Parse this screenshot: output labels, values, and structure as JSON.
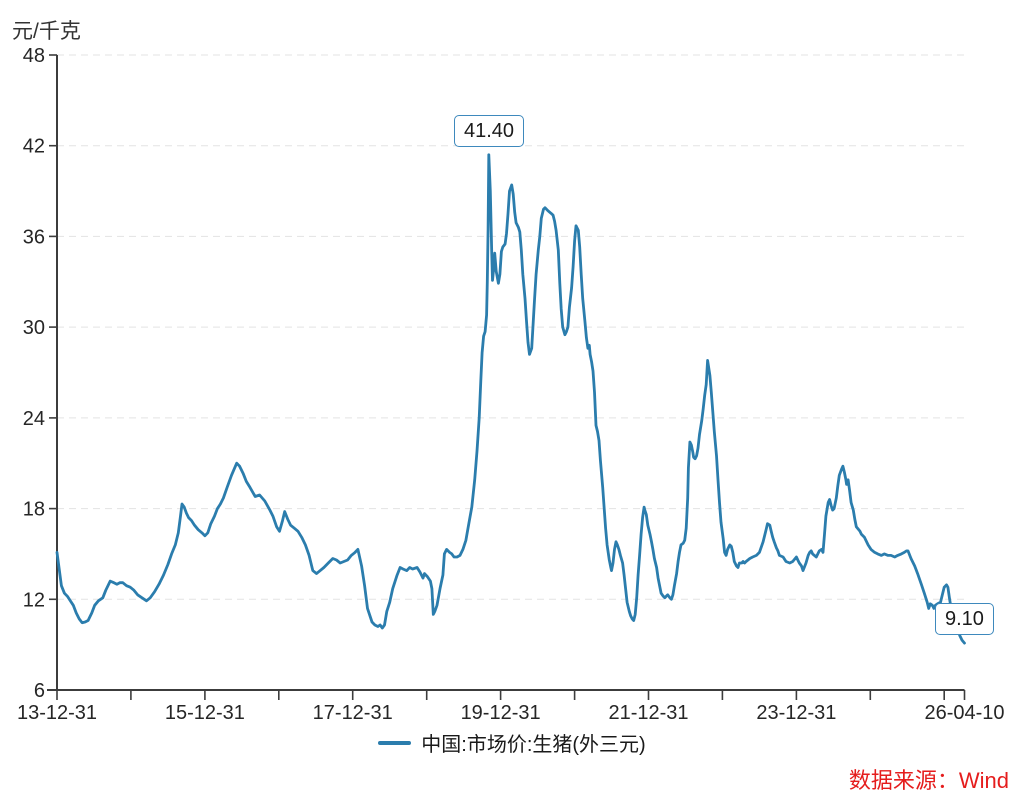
{
  "y_axis_unit": "元/千克",
  "legend": {
    "label": "中国:市场价:生猪(外三元)"
  },
  "source": "数据来源：Wind",
  "colors": {
    "line": "#2b7dad",
    "grid": "#e3e3e3",
    "axis": "#3c3c3c",
    "text": "#262626",
    "source": "#e51d1d",
    "anno_border": "#3e89bd"
  },
  "chart_data": {
    "type": "line",
    "title": "",
    "ylabel": "元/千克",
    "series_name": "中国:市场价:生猪(外三元)",
    "x_unit": "years since 2013-12-31",
    "x_range": [
      0,
      12.274
    ],
    "ylim": [
      6,
      48
    ],
    "grid": "dashed-horizontal",
    "legend_position": "bottom-center",
    "y_ticks": [
      6,
      12,
      18,
      24,
      30,
      36,
      42,
      48
    ],
    "x_ticks": [
      {
        "t": 0,
        "label": "13-12-31"
      },
      {
        "t": 1
      },
      {
        "t": 2,
        "label": "15-12-31"
      },
      {
        "t": 3
      },
      {
        "t": 4,
        "label": "17-12-31"
      },
      {
        "t": 5
      },
      {
        "t": 6,
        "label": "19-12-31"
      },
      {
        "t": 7
      },
      {
        "t": 8,
        "label": "21-12-31"
      },
      {
        "t": 9
      },
      {
        "t": 10,
        "label": "23-12-31"
      },
      {
        "t": 11
      },
      {
        "t": 12
      },
      {
        "t": 12.274,
        "label": "26-04-10"
      }
    ],
    "annotations": [
      {
        "label": "41.40",
        "t": 5.84,
        "v": 41.4
      },
      {
        "label": "9.10",
        "t": 12.274,
        "v": 9.1
      }
    ],
    "points": [
      [
        0,
        15.1
      ],
      [
        0.03,
        14
      ],
      [
        0.06,
        12.9
      ],
      [
        0.1,
        12.4
      ],
      [
        0.14,
        12.2
      ],
      [
        0.18,
        11.9
      ],
      [
        0.22,
        11.6
      ],
      [
        0.26,
        11.1
      ],
      [
        0.3,
        10.7
      ],
      [
        0.34,
        10.45
      ],
      [
        0.38,
        10.5
      ],
      [
        0.42,
        10.6
      ],
      [
        0.47,
        11.1
      ],
      [
        0.51,
        11.6
      ],
      [
        0.56,
        11.9
      ],
      [
        0.62,
        12.1
      ],
      [
        0.66,
        12.6
      ],
      [
        0.72,
        13.2
      ],
      [
        0.77,
        13.1
      ],
      [
        0.81,
        13
      ],
      [
        0.85,
        13.1
      ],
      [
        0.89,
        13.1
      ],
      [
        0.94,
        12.9
      ],
      [
        0.99,
        12.8
      ],
      [
        1.04,
        12.6
      ],
      [
        1.09,
        12.3
      ],
      [
        1.15,
        12.1
      ],
      [
        1.21,
        11.9
      ],
      [
        1.26,
        12.1
      ],
      [
        1.32,
        12.5
      ],
      [
        1.38,
        13
      ],
      [
        1.44,
        13.6
      ],
      [
        1.5,
        14.3
      ],
      [
        1.55,
        15
      ],
      [
        1.6,
        15.6
      ],
      [
        1.64,
        16.4
      ],
      [
        1.67,
        17.5
      ],
      [
        1.69,
        18.3
      ],
      [
        1.72,
        18.1
      ],
      [
        1.75,
        17.7
      ],
      [
        1.78,
        17.4
      ],
      [
        1.82,
        17.2
      ],
      [
        1.86,
        16.9
      ],
      [
        1.91,
        16.6
      ],
      [
        1.96,
        16.4
      ],
      [
        2,
        16.2
      ],
      [
        2.04,
        16.4
      ],
      [
        2.08,
        17
      ],
      [
        2.13,
        17.5
      ],
      [
        2.17,
        18
      ],
      [
        2.21,
        18.3
      ],
      [
        2.25,
        18.7
      ],
      [
        2.3,
        19.4
      ],
      [
        2.36,
        20.2
      ],
      [
        2.43,
        21
      ],
      [
        2.47,
        20.8
      ],
      [
        2.52,
        20.3
      ],
      [
        2.56,
        19.8
      ],
      [
        2.61,
        19.4
      ],
      [
        2.68,
        18.8
      ],
      [
        2.74,
        18.9
      ],
      [
        2.81,
        18.5
      ],
      [
        2.88,
        17.9
      ],
      [
        2.92,
        17.5
      ],
      [
        2.97,
        16.8
      ],
      [
        3.01,
        16.5
      ],
      [
        3.05,
        17.2
      ],
      [
        3.08,
        17.8
      ],
      [
        3.12,
        17.3
      ],
      [
        3.16,
        16.9
      ],
      [
        3.21,
        16.7
      ],
      [
        3.26,
        16.5
      ],
      [
        3.31,
        16.1
      ],
      [
        3.36,
        15.6
      ],
      [
        3.41,
        14.9
      ],
      [
        3.46,
        13.9
      ],
      [
        3.51,
        13.7
      ],
      [
        3.56,
        13.9
      ],
      [
        3.61,
        14.1
      ],
      [
        3.67,
        14.4
      ],
      [
        3.73,
        14.7
      ],
      [
        3.78,
        14.6
      ],
      [
        3.83,
        14.4
      ],
      [
        3.88,
        14.5
      ],
      [
        3.93,
        14.6
      ],
      [
        3.98,
        14.9
      ],
      [
        4.03,
        15.1
      ],
      [
        4.07,
        15.3
      ],
      [
        4.12,
        14.2
      ],
      [
        4.16,
        12.9
      ],
      [
        4.2,
        11.4
      ],
      [
        4.26,
        10.5
      ],
      [
        4.3,
        10.3
      ],
      [
        4.34,
        10.2
      ],
      [
        4.37,
        10.3
      ],
      [
        4.4,
        10.1
      ],
      [
        4.43,
        10.3
      ],
      [
        4.46,
        11.2
      ],
      [
        4.5,
        11.8
      ],
      [
        4.54,
        12.7
      ],
      [
        4.6,
        13.6
      ],
      [
        4.64,
        14.1
      ],
      [
        4.68,
        14
      ],
      [
        4.73,
        13.9
      ],
      [
        4.77,
        14.1
      ],
      [
        4.81,
        14
      ],
      [
        4.87,
        14.1
      ],
      [
        4.91,
        13.8
      ],
      [
        4.95,
        13.4
      ],
      [
        4.97,
        13.7
      ],
      [
        5.01,
        13.5
      ],
      [
        5.05,
        13.2
      ],
      [
        5.07,
        12.7
      ],
      [
        5.09,
        11
      ],
      [
        5.11,
        11.2
      ],
      [
        5.14,
        11.6
      ],
      [
        5.18,
        12.7
      ],
      [
        5.22,
        13.6
      ],
      [
        5.24,
        15
      ],
      [
        5.27,
        15.3
      ],
      [
        5.31,
        15.1
      ],
      [
        5.34,
        15
      ],
      [
        5.37,
        14.8
      ],
      [
        5.41,
        14.8
      ],
      [
        5.45,
        14.9
      ],
      [
        5.49,
        15.3
      ],
      [
        5.53,
        15.9
      ],
      [
        5.57,
        17
      ],
      [
        5.61,
        18.1
      ],
      [
        5.65,
        19.9
      ],
      [
        5.68,
        21.8
      ],
      [
        5.71,
        24
      ],
      [
        5.73,
        26.3
      ],
      [
        5.75,
        28.3
      ],
      [
        5.77,
        29.4
      ],
      [
        5.79,
        29.7
      ],
      [
        5.81,
        30.8
      ],
      [
        5.82,
        33
      ],
      [
        5.83,
        36.5
      ],
      [
        5.84,
        41.4
      ],
      [
        5.86,
        39
      ],
      [
        5.88,
        35
      ],
      [
        5.89,
        33.1
      ],
      [
        5.91,
        34.1
      ],
      [
        5.92,
        34.9
      ],
      [
        5.94,
        33.7
      ],
      [
        5.97,
        32.9
      ],
      [
        5.99,
        33.5
      ],
      [
        6.01,
        35
      ],
      [
        6.03,
        35.3
      ],
      [
        6.06,
        35.5
      ],
      [
        6.08,
        36.2
      ],
      [
        6.1,
        37.5
      ],
      [
        6.12,
        39
      ],
      [
        6.15,
        39.4
      ],
      [
        6.17,
        38.8
      ],
      [
        6.19,
        37.6
      ],
      [
        6.21,
        36.9
      ],
      [
        6.24,
        36.6
      ],
      [
        6.26,
        36.3
      ],
      [
        6.28,
        35.1
      ],
      [
        6.3,
        33.5
      ],
      [
        6.33,
        31.9
      ],
      [
        6.35,
        30.4
      ],
      [
        6.37,
        29
      ],
      [
        6.39,
        28.2
      ],
      [
        6.42,
        28.6
      ],
      [
        6.44,
        30.3
      ],
      [
        6.46,
        31.9
      ],
      [
        6.48,
        33.5
      ],
      [
        6.51,
        35.1
      ],
      [
        6.53,
        36
      ],
      [
        6.55,
        37.2
      ],
      [
        6.58,
        37.8
      ],
      [
        6.6,
        37.9
      ],
      [
        6.64,
        37.7
      ],
      [
        6.69,
        37.5
      ],
      [
        6.71,
        37.4
      ],
      [
        6.73,
        37
      ],
      [
        6.75,
        36.4
      ],
      [
        6.78,
        35.1
      ],
      [
        6.8,
        32.9
      ],
      [
        6.82,
        31.2
      ],
      [
        6.84,
        30
      ],
      [
        6.87,
        29.5
      ],
      [
        6.89,
        29.7
      ],
      [
        6.91,
        30
      ],
      [
        6.93,
        31.3
      ],
      [
        6.96,
        32.6
      ],
      [
        6.98,
        34
      ],
      [
        7,
        35.7
      ],
      [
        7.02,
        36.7
      ],
      [
        7.05,
        36.4
      ],
      [
        7.07,
        35.3
      ],
      [
        7.09,
        33.5
      ],
      [
        7.11,
        31.9
      ],
      [
        7.14,
        30.4
      ],
      [
        7.16,
        29.3
      ],
      [
        7.18,
        28.6
      ],
      [
        7.2,
        28.8
      ],
      [
        7.21,
        28.2
      ],
      [
        7.23,
        27.7
      ],
      [
        7.25,
        27.1
      ],
      [
        7.27,
        25.7
      ],
      [
        7.29,
        23.5
      ],
      [
        7.31,
        23.1
      ],
      [
        7.33,
        22.5
      ],
      [
        7.35,
        21.2
      ],
      [
        7.38,
        19.4
      ],
      [
        7.4,
        18.1
      ],
      [
        7.42,
        16.7
      ],
      [
        7.44,
        15.6
      ],
      [
        7.47,
        14.6
      ],
      [
        7.49,
        14.1
      ],
      [
        7.5,
        13.9
      ],
      [
        7.52,
        14.4
      ],
      [
        7.54,
        15.3
      ],
      [
        7.56,
        15.8
      ],
      [
        7.58,
        15.6
      ],
      [
        7.6,
        15.3
      ],
      [
        7.62,
        14.9
      ],
      [
        7.65,
        14.4
      ],
      [
        7.67,
        13.6
      ],
      [
        7.69,
        12.7
      ],
      [
        7.71,
        11.8
      ],
      [
        7.74,
        11.2
      ],
      [
        7.76,
        10.9
      ],
      [
        7.78,
        10.7
      ],
      [
        7.8,
        10.6
      ],
      [
        7.82,
        11
      ],
      [
        7.84,
        12.1
      ],
      [
        7.86,
        13.6
      ],
      [
        7.88,
        14.9
      ],
      [
        7.9,
        16.3
      ],
      [
        7.92,
        17.4
      ],
      [
        7.94,
        18.1
      ],
      [
        7.95,
        17.9
      ],
      [
        7.97,
        17.6
      ],
      [
        7.99,
        16.9
      ],
      [
        8.02,
        16.3
      ],
      [
        8.04,
        15.8
      ],
      [
        8.06,
        15.3
      ],
      [
        8.08,
        14.7
      ],
      [
        8.11,
        14.1
      ],
      [
        8.13,
        13.4
      ],
      [
        8.15,
        12.9
      ],
      [
        8.17,
        12.4
      ],
      [
        8.2,
        12.2
      ],
      [
        8.22,
        12.1
      ],
      [
        8.24,
        12.2
      ],
      [
        8.26,
        12.3
      ],
      [
        8.29,
        12.1
      ],
      [
        8.31,
        12
      ],
      [
        8.33,
        12.3
      ],
      [
        8.35,
        12.9
      ],
      [
        8.38,
        13.7
      ],
      [
        8.4,
        14.5
      ],
      [
        8.42,
        15.1
      ],
      [
        8.44,
        15.6
      ],
      [
        8.47,
        15.7
      ],
      [
        8.49,
        15.9
      ],
      [
        8.51,
        16.7
      ],
      [
        8.53,
        18.7
      ],
      [
        8.54,
        20.7
      ],
      [
        8.56,
        22.4
      ],
      [
        8.58,
        22.2
      ],
      [
        8.6,
        21.7
      ],
      [
        8.61,
        21.4
      ],
      [
        8.63,
        21.3
      ],
      [
        8.65,
        21.5
      ],
      [
        8.67,
        22
      ],
      [
        8.69,
        22.9
      ],
      [
        8.72,
        23.8
      ],
      [
        8.74,
        24.6
      ],
      [
        8.76,
        25.5
      ],
      [
        8.78,
        26.2
      ],
      [
        8.8,
        27.8
      ],
      [
        8.83,
        26.8
      ],
      [
        8.85,
        25.7
      ],
      [
        8.87,
        24.4
      ],
      [
        8.89,
        23.1
      ],
      [
        8.92,
        21.5
      ],
      [
        8.94,
        19.9
      ],
      [
        8.96,
        18.4
      ],
      [
        8.98,
        17.1
      ],
      [
        9.01,
        16
      ],
      [
        9.03,
        15.1
      ],
      [
        9.05,
        14.9
      ],
      [
        9.07,
        15.3
      ],
      [
        9.1,
        15.6
      ],
      [
        9.12,
        15.5
      ],
      [
        9.14,
        15.1
      ],
      [
        9.16,
        14.5
      ],
      [
        9.19,
        14.2
      ],
      [
        9.21,
        14.1
      ],
      [
        9.23,
        14.4
      ],
      [
        9.26,
        14.4
      ],
      [
        9.28,
        14.5
      ],
      [
        9.3,
        14.4
      ],
      [
        9.32,
        14.5
      ],
      [
        9.37,
        14.7
      ],
      [
        9.41,
        14.8
      ],
      [
        9.46,
        14.9
      ],
      [
        9.5,
        15.1
      ],
      [
        9.55,
        15.8
      ],
      [
        9.59,
        16.6
      ],
      [
        9.61,
        17
      ],
      [
        9.64,
        16.9
      ],
      [
        9.66,
        16.5
      ],
      [
        9.68,
        16.1
      ],
      [
        9.7,
        15.8
      ],
      [
        9.73,
        15.4
      ],
      [
        9.75,
        15.2
      ],
      [
        9.77,
        14.9
      ],
      [
        9.82,
        14.8
      ],
      [
        9.86,
        14.5
      ],
      [
        9.91,
        14.4
      ],
      [
        9.95,
        14.5
      ],
      [
        10,
        14.8
      ],
      [
        10.02,
        14.6
      ],
      [
        10.04,
        14.4
      ],
      [
        10.07,
        14.2
      ],
      [
        10.09,
        13.9
      ],
      [
        10.13,
        14.4
      ],
      [
        10.16,
        14.9
      ],
      [
        10.18,
        15.1
      ],
      [
        10.2,
        15.2
      ],
      [
        10.22,
        15
      ],
      [
        10.27,
        14.8
      ],
      [
        10.31,
        15.2
      ],
      [
        10.34,
        15.3
      ],
      [
        10.36,
        15.1
      ],
      [
        10.38,
        16.3
      ],
      [
        10.4,
        17.5
      ],
      [
        10.43,
        18.4
      ],
      [
        10.45,
        18.6
      ],
      [
        10.47,
        18.2
      ],
      [
        10.49,
        17.9
      ],
      [
        10.51,
        18
      ],
      [
        10.54,
        18.7
      ],
      [
        10.56,
        19.5
      ],
      [
        10.58,
        20.2
      ],
      [
        10.61,
        20.6
      ],
      [
        10.63,
        20.8
      ],
      [
        10.65,
        20.4
      ],
      [
        10.67,
        19.9
      ],
      [
        10.68,
        19.6
      ],
      [
        10.7,
        19.9
      ],
      [
        10.72,
        19.2
      ],
      [
        10.74,
        18.4
      ],
      [
        10.77,
        17.9
      ],
      [
        10.79,
        17.3
      ],
      [
        10.81,
        16.8
      ],
      [
        10.86,
        16.5
      ],
      [
        10.88,
        16.3
      ],
      [
        10.92,
        16.1
      ],
      [
        10.97,
        15.6
      ],
      [
        11.01,
        15.3
      ],
      [
        11.06,
        15.1
      ],
      [
        11.1,
        15
      ],
      [
        11.15,
        14.9
      ],
      [
        11.19,
        15
      ],
      [
        11.24,
        14.9
      ],
      [
        11.28,
        14.9
      ],
      [
        11.33,
        14.8
      ],
      [
        11.37,
        14.9
      ],
      [
        11.42,
        15
      ],
      [
        11.46,
        15.1
      ],
      [
        11.49,
        15.2
      ],
      [
        11.51,
        15.2
      ],
      [
        11.55,
        14.7
      ],
      [
        11.6,
        14.2
      ],
      [
        11.64,
        13.7
      ],
      [
        11.69,
        13
      ],
      [
        11.73,
        12.4
      ],
      [
        11.77,
        11.8
      ],
      [
        11.79,
        11.4
      ],
      [
        11.81,
        11.7
      ],
      [
        11.84,
        11.6
      ],
      [
        11.86,
        11.4
      ],
      [
        11.88,
        11.6
      ],
      [
        11.91,
        11.7
      ],
      [
        11.95,
        11.8
      ],
      [
        12,
        12.8
      ],
      [
        12.03,
        12.95
      ],
      [
        12.05,
        12.8
      ],
      [
        12.07,
        12.1
      ],
      [
        12.1,
        11.2
      ],
      [
        12.13,
        10.6
      ],
      [
        12.17,
        10.1
      ],
      [
        12.21,
        9.6
      ],
      [
        12.24,
        9.3
      ],
      [
        12.274,
        9.1
      ]
    ]
  }
}
